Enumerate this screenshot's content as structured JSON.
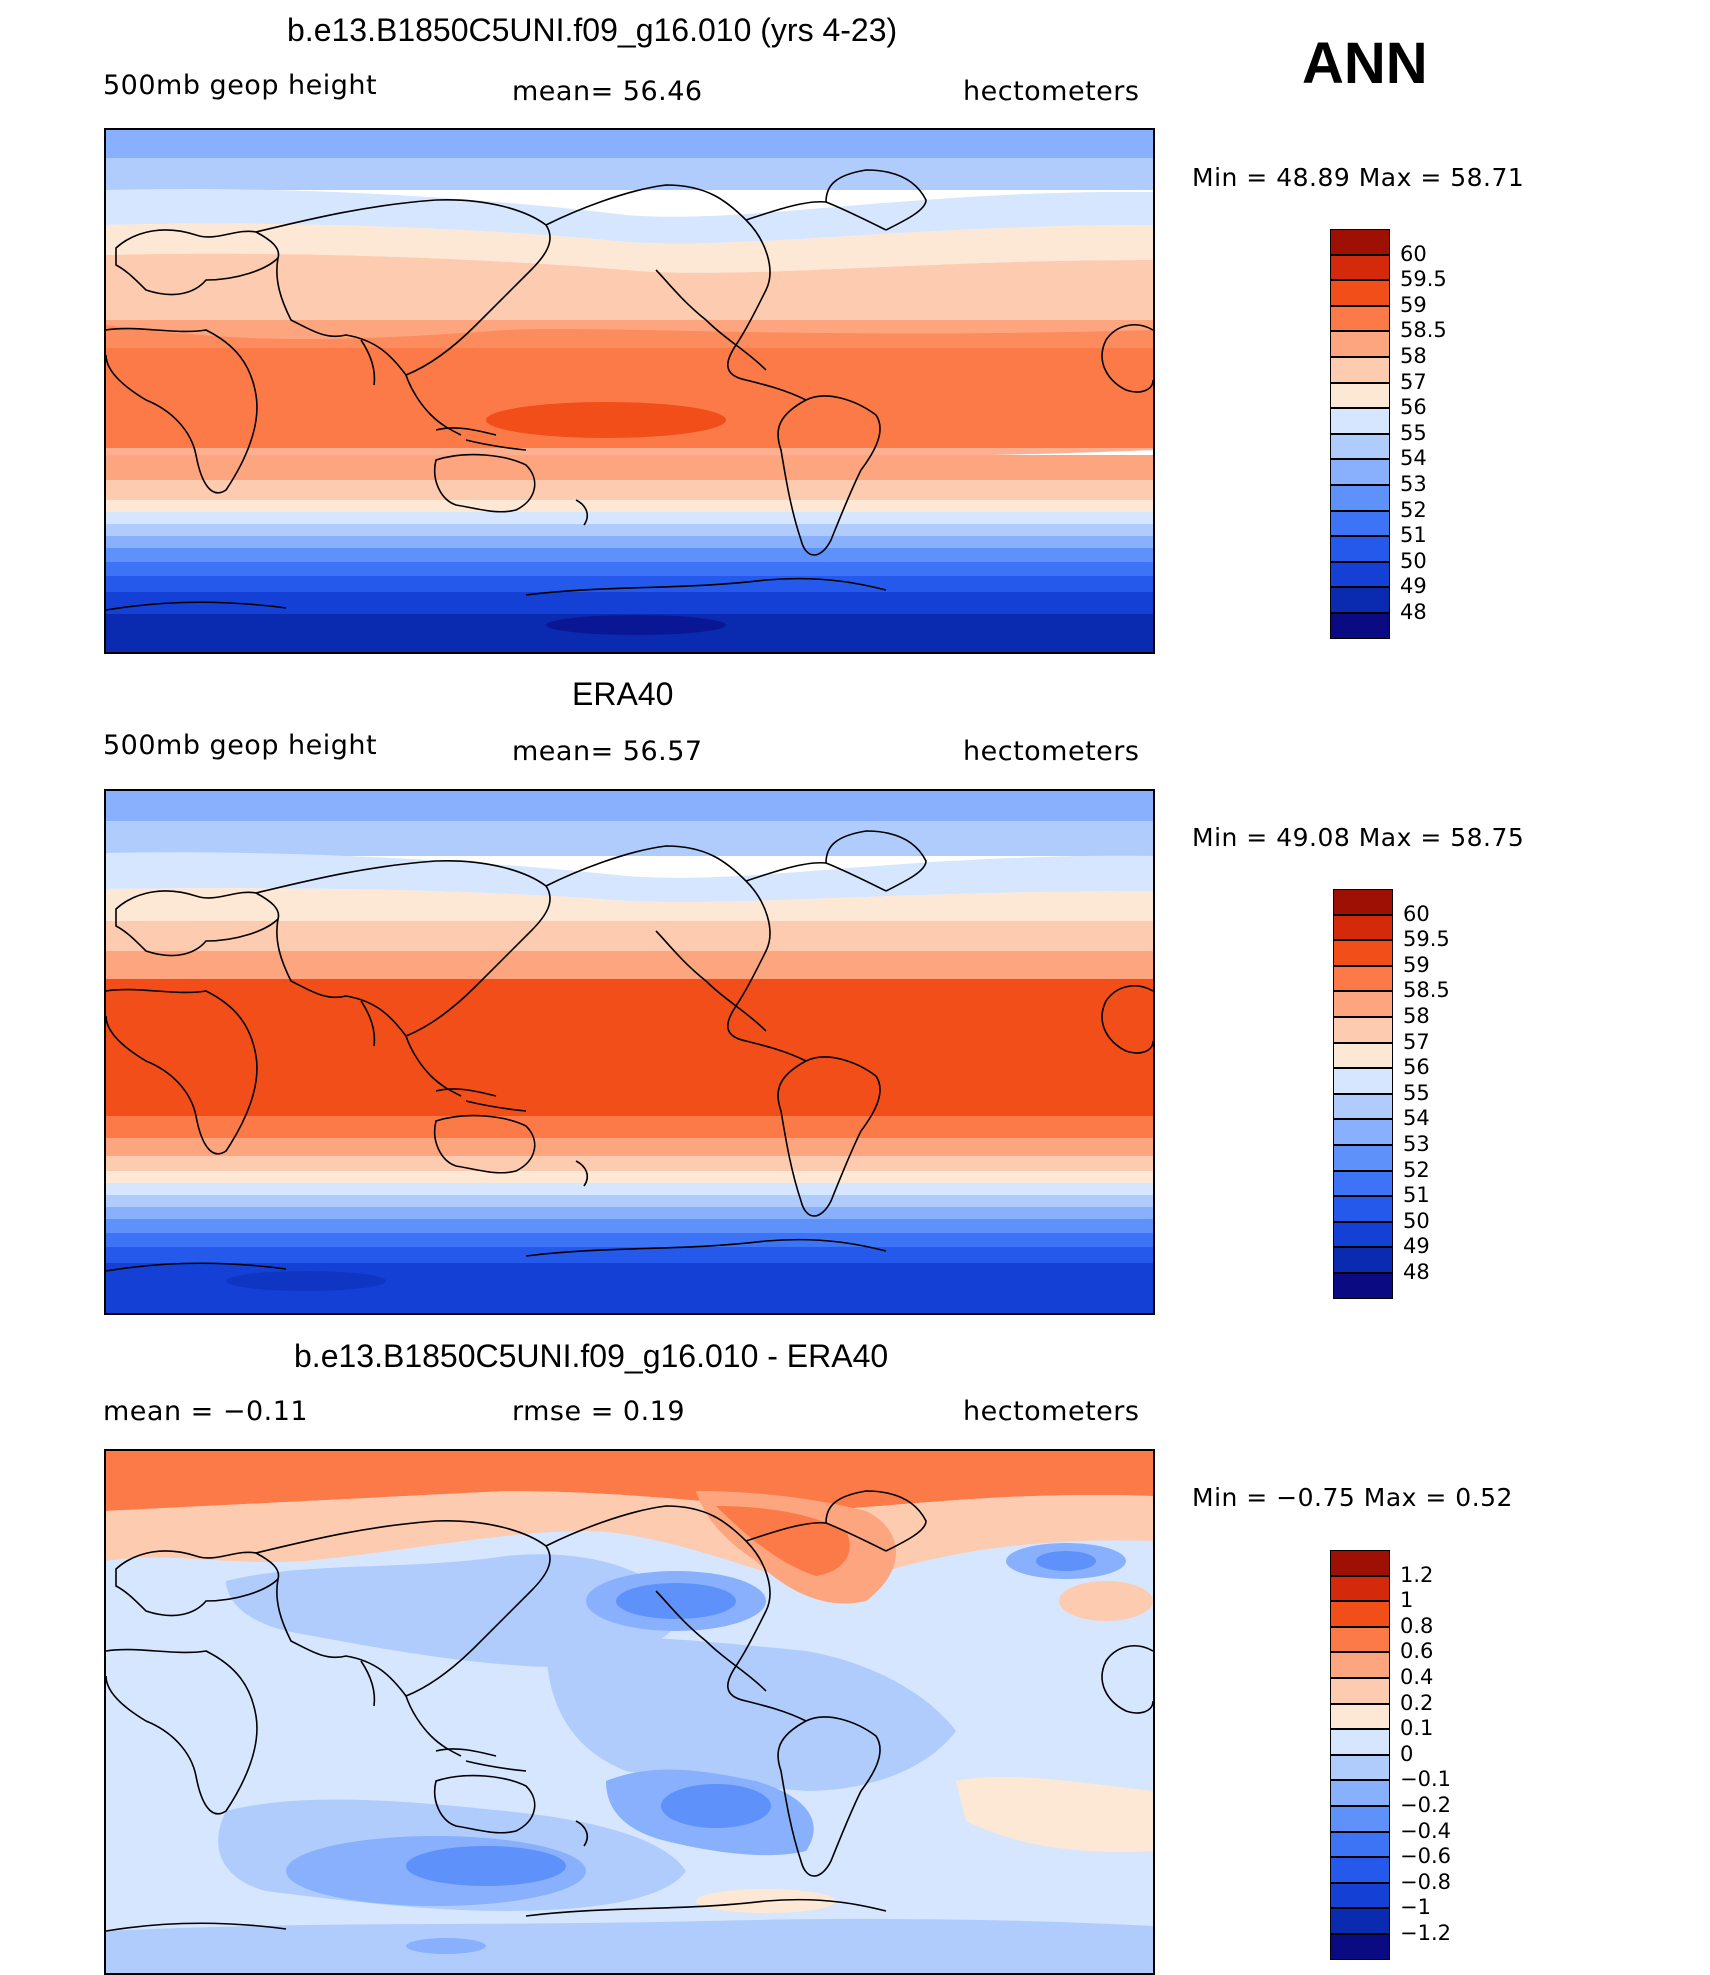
{
  "season": "ANN",
  "panels": [
    {
      "id": "model",
      "title": "b.e13.B1850C5UNI.f09_g16.010 (yrs 4-23)",
      "left_text": "500mb geop height",
      "center_text": "mean=   56.46",
      "right_text": "hectometers",
      "minmax_text": "Min =   48.89  Max =   58.71",
      "colorbar_labels": [
        "60",
        "59.5",
        "59",
        "58.5",
        "58",
        "57",
        "56",
        "55",
        "54",
        "53",
        "52",
        "51",
        "50",
        "49",
        "48"
      ]
    },
    {
      "id": "obs",
      "title": "ERA40",
      "left_text": "500mb geop height",
      "center_text": "mean=   56.57",
      "right_text": "hectometers",
      "minmax_text": "Min =   49.08  Max =   58.75",
      "colorbar_labels": [
        "60",
        "59.5",
        "59",
        "58.5",
        "58",
        "57",
        "56",
        "55",
        "54",
        "53",
        "52",
        "51",
        "50",
        "49",
        "48"
      ]
    },
    {
      "id": "diff",
      "title": "b.e13.B1850C5UNI.f09_g16.010 - ERA40",
      "left_text": "mean =   −0.11",
      "center_text": "rmse =    0.19",
      "right_text": "hectometers",
      "minmax_text": "Min =   −0.75  Max =     0.52",
      "colorbar_labels": [
        "1.2",
        "1",
        "0.8",
        "0.6",
        "0.4",
        "0.2",
        "0.1",
        "0",
        "−0.1",
        "−0.2",
        "−0.4",
        "−0.6",
        "−0.8",
        "−1",
        "−1.2"
      ]
    }
  ],
  "colors": [
    "#0a0a82",
    "#0a2bb0",
    "#1440d6",
    "#2459ec",
    "#3c74f5",
    "#5e92fa",
    "#88b0fc",
    "#b0ccfd",
    "#d6e6fe",
    "#fde8d6",
    "#fdcbb0",
    "#fda57f",
    "#fc7a48",
    "#f14e1a",
    "#d42a0b",
    "#9e0f04"
  ],
  "diff_colors": [
    "#0a0a82",
    "#0a2bb0",
    "#1440d6",
    "#2459ec",
    "#3c74f5",
    "#5e92fa",
    "#88b0fc",
    "#b0ccfd",
    "#d6e6fe",
    "#fde8d6",
    "#fdcbb0",
    "#fda57f",
    "#fc7a48",
    "#f14e1a",
    "#d42a0b",
    "#9e0f04"
  ]
}
